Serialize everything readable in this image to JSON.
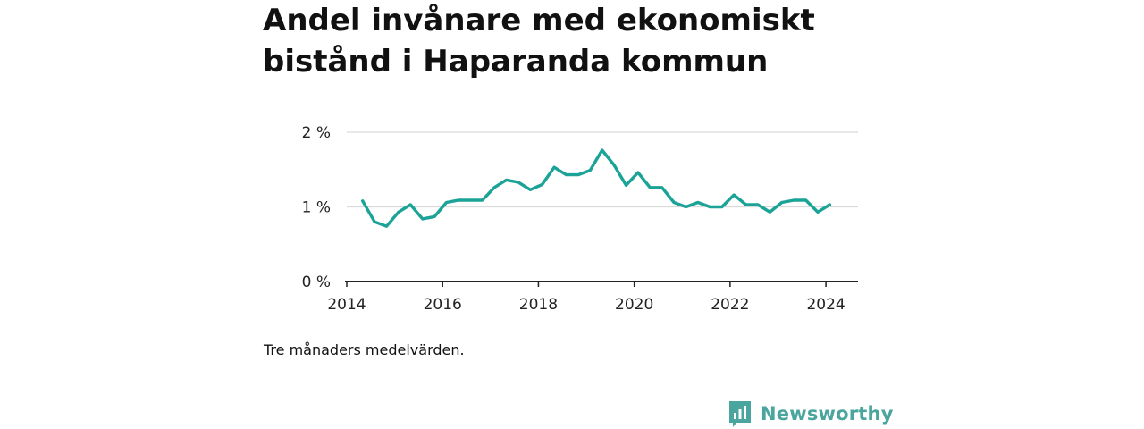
{
  "header": {
    "title": "Andel invånare med ekonomiskt bistånd i Haparanda kommun"
  },
  "footer": {
    "note": "Tre månaders medelvärden.",
    "brand": "Newsworthy",
    "brand_icon": "newsworthy-logo-icon"
  },
  "colors": {
    "line": "#1aa396",
    "grid": "#d9d9d9",
    "axis": "#222222",
    "brand": "#4aa59e"
  },
  "chart_data": {
    "type": "line",
    "title": "Andel invånare med ekonomiskt bistånd i Haparanda kommun",
    "xlabel": "",
    "ylabel": "",
    "xlim": [
      2014,
      2024.67
    ],
    "ylim": [
      0,
      2
    ],
    "x_ticks": [
      2014,
      2016,
      2018,
      2020,
      2022,
      2024
    ],
    "x_tick_labels": [
      "2014",
      "2016",
      "2018",
      "2020",
      "2022",
      "2024"
    ],
    "y_ticks": [
      0,
      1,
      2
    ],
    "y_tick_labels": [
      "0 %",
      "1 %",
      "2 %"
    ],
    "grid": true,
    "legend": "none",
    "series": [
      {
        "x": [
          2014.33,
          2014.58,
          2014.83,
          2015.08,
          2015.33,
          2015.58,
          2015.83,
          2016.08,
          2016.33,
          2016.58,
          2016.83,
          2017.08,
          2017.33,
          2017.58,
          2017.83,
          2018.08,
          2018.33,
          2018.58,
          2018.83,
          2019.08,
          2019.33,
          2019.58,
          2019.83,
          2020.08,
          2020.33,
          2020.58,
          2020.83,
          2021.08,
          2021.33,
          2021.58,
          2021.83,
          2022.08,
          2022.33,
          2022.58,
          2022.83,
          2023.08,
          2023.33,
          2023.58,
          2023.83,
          2024.08
        ],
        "values": [
          1.08,
          0.8,
          0.74,
          0.93,
          1.03,
          0.84,
          0.87,
          1.06,
          1.09,
          1.09,
          1.09,
          1.26,
          1.36,
          1.33,
          1.23,
          1.3,
          1.53,
          1.43,
          1.43,
          1.49,
          1.76,
          1.56,
          1.29,
          1.46,
          1.26,
          1.26,
          1.06,
          1.0,
          1.06,
          1.0,
          1.0,
          1.16,
          1.03,
          1.03,
          0.93,
          1.06,
          1.09,
          1.09,
          0.93,
          1.03
        ]
      }
    ]
  }
}
